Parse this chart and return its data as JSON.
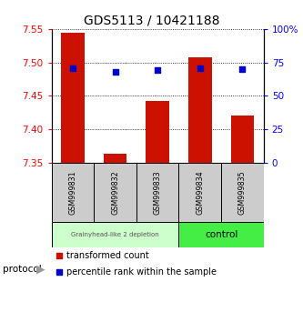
{
  "title": "GDS5113 / 10421188",
  "samples": [
    "GSM999831",
    "GSM999832",
    "GSM999833",
    "GSM999834",
    "GSM999835"
  ],
  "bar_values": [
    7.545,
    7.363,
    7.443,
    7.507,
    7.42
  ],
  "bar_base": 7.35,
  "percentile_values": [
    71,
    68,
    69,
    71,
    70
  ],
  "ylim_left": [
    7.35,
    7.55
  ],
  "ylim_right": [
    0,
    100
  ],
  "yticks_left": [
    7.35,
    7.4,
    7.45,
    7.5,
    7.55
  ],
  "yticks_right": [
    0,
    25,
    50,
    75,
    100
  ],
  "ytick_labels_right": [
    "0",
    "25",
    "50",
    "75",
    "100%"
  ],
  "bar_color": "#cc1100",
  "percentile_color": "#0000cc",
  "group1_label": "Grainyhead-like 2 depletion",
  "group2_label": "control",
  "group1_color": "#ccffcc",
  "group2_color": "#44ee44",
  "group1_indices": [
    0,
    1,
    2
  ],
  "group2_indices": [
    3,
    4
  ],
  "protocol_label": "protocol",
  "legend_bar_label": "transformed count",
  "legend_pct_label": "percentile rank within the sample",
  "background_color": "#ffffff",
  "plot_bg_color": "#ffffff",
  "grid_color": "#000000",
  "title_fontsize": 10,
  "tick_fontsize": 7.5,
  "label_fontsize": 8
}
